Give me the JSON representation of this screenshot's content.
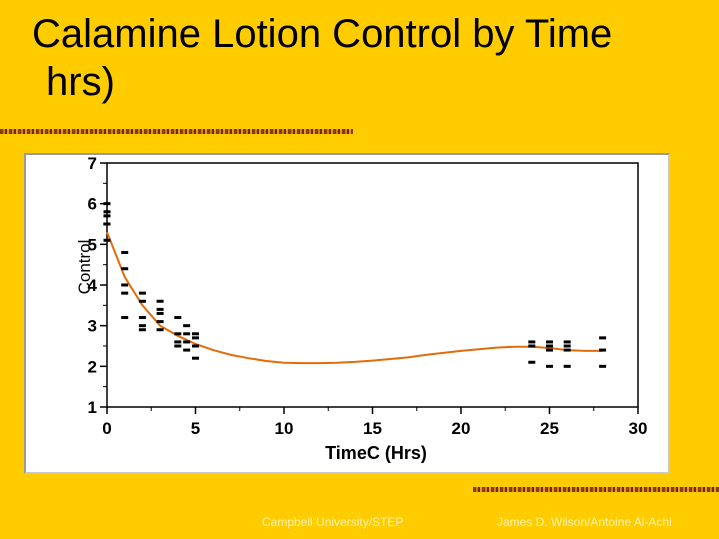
{
  "slide": {
    "title_line1": "Calamine Lotion Control by Time",
    "title_line2": "hrs)",
    "footer_left": "Campbell University/STEP",
    "footer_right": "James D. Wilson/Antoine Al-Achi"
  },
  "colors": {
    "background": "#FFCC00",
    "fit_line": "#E36C0A",
    "points": "#000000",
    "plot_background": "#FFFFFF"
  },
  "chart_data": {
    "type": "scatter",
    "title": "",
    "xlabel": "TimeC (Hrs)",
    "ylabel": "Control",
    "xlim": [
      0,
      30
    ],
    "ylim": [
      1,
      7
    ],
    "x_ticks": [
      0,
      5,
      10,
      15,
      20,
      25,
      30
    ],
    "y_ticks": [
      1,
      2,
      3,
      4,
      5,
      6,
      7
    ],
    "grid": false,
    "legend": "none",
    "marker": "dash",
    "points": [
      [
        0,
        6.0
      ],
      [
        0,
        5.8
      ],
      [
        0,
        5.7
      ],
      [
        0,
        5.5
      ],
      [
        0,
        5.1
      ],
      [
        1,
        4.8
      ],
      [
        1,
        4.4
      ],
      [
        1,
        4.0
      ],
      [
        1,
        3.8
      ],
      [
        1,
        3.2
      ],
      [
        2,
        3.8
      ],
      [
        2,
        3.6
      ],
      [
        2,
        3.2
      ],
      [
        2,
        3.0
      ],
      [
        2,
        2.9
      ],
      [
        3,
        3.6
      ],
      [
        3,
        3.4
      ],
      [
        3,
        3.3
      ],
      [
        3,
        3.1
      ],
      [
        3,
        2.9
      ],
      [
        4,
        3.2
      ],
      [
        4,
        2.8
      ],
      [
        4,
        2.6
      ],
      [
        4,
        2.5
      ],
      [
        4.5,
        3.0
      ],
      [
        4.5,
        2.8
      ],
      [
        4.5,
        2.6
      ],
      [
        4.5,
        2.4
      ],
      [
        5,
        2.8
      ],
      [
        5,
        2.7
      ],
      [
        5,
        2.5
      ],
      [
        5,
        2.2
      ],
      [
        24,
        2.6
      ],
      [
        24,
        2.5
      ],
      [
        24,
        2.1
      ],
      [
        25,
        2.6
      ],
      [
        25,
        2.5
      ],
      [
        25,
        2.4
      ],
      [
        25,
        2.0
      ],
      [
        26,
        2.6
      ],
      [
        26,
        2.5
      ],
      [
        26,
        2.4
      ],
      [
        26,
        2.0
      ],
      [
        28,
        2.7
      ],
      [
        28,
        2.4
      ],
      [
        28,
        2.0
      ]
    ],
    "fit_line": {
      "x": [
        0,
        1,
        2,
        3,
        4,
        5,
        6,
        7,
        8,
        9,
        10,
        11,
        12,
        13,
        14,
        15,
        16,
        17,
        18,
        19,
        20,
        21,
        22,
        23,
        24,
        25,
        26,
        27,
        28
      ],
      "y": [
        5.3,
        4.2,
        3.5,
        3.0,
        2.75,
        2.55,
        2.4,
        2.28,
        2.2,
        2.13,
        2.09,
        2.08,
        2.08,
        2.09,
        2.11,
        2.14,
        2.18,
        2.22,
        2.28,
        2.33,
        2.38,
        2.42,
        2.46,
        2.48,
        2.48,
        2.45,
        2.4,
        2.38,
        2.38
      ]
    }
  }
}
